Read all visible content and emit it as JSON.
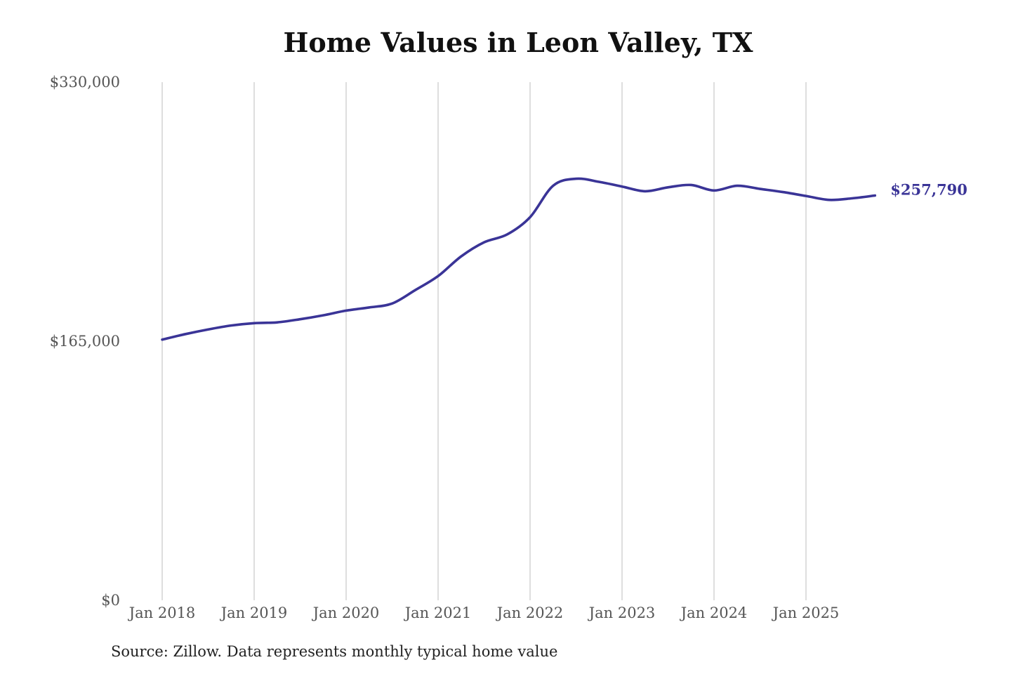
{
  "chart_data": {
    "type": "line",
    "title": "Home Values in Leon Valley, TX",
    "xlabel": "",
    "ylabel": "",
    "source": "Source: Zillow. Data represents monthly typical home value",
    "ylim": [
      0,
      330000
    ],
    "y_ticks": [
      {
        "value": 0,
        "label": "$0"
      },
      {
        "value": 165000,
        "label": "$165,000"
      },
      {
        "value": 330000,
        "label": "$330,000"
      }
    ],
    "x_ticks": [
      {
        "value": 2018.0,
        "label": "Jan 2018"
      },
      {
        "value": 2019.0,
        "label": "Jan 2019"
      },
      {
        "value": 2020.0,
        "label": "Jan 2020"
      },
      {
        "value": 2021.0,
        "label": "Jan 2021"
      },
      {
        "value": 2022.0,
        "label": "Jan 2022"
      },
      {
        "value": 2023.0,
        "label": "Jan 2023"
      },
      {
        "value": 2024.0,
        "label": "Jan 2024"
      },
      {
        "value": 2025.0,
        "label": "Jan 2025"
      }
    ],
    "grid": "vertical",
    "line_color": "#3a3497",
    "end_label": "$257,790",
    "series": [
      {
        "x": [
          2018.0,
          2018.25,
          2018.5,
          2018.75,
          2019.0,
          2019.25,
          2019.5,
          2019.75,
          2020.0,
          2020.25,
          2020.5,
          2020.75,
          2021.0,
          2021.25,
          2021.5,
          2021.75,
          2022.0,
          2022.25,
          2022.5,
          2022.75,
          2023.0,
          2023.25,
          2023.5,
          2023.75,
          2024.0,
          2024.25,
          2024.5,
          2024.75,
          2025.0,
          2025.25,
          2025.5,
          2025.75
        ],
        "y": [
          166000,
          169500,
          172500,
          175000,
          176500,
          177000,
          179000,
          181500,
          184500,
          186500,
          189000,
          197500,
          206500,
          219000,
          228000,
          233000,
          244000,
          264000,
          268500,
          266500,
          263500,
          260500,
          263000,
          264500,
          261000,
          264000,
          262000,
          260000,
          257500,
          255000,
          256000,
          257790
        ]
      }
    ]
  }
}
